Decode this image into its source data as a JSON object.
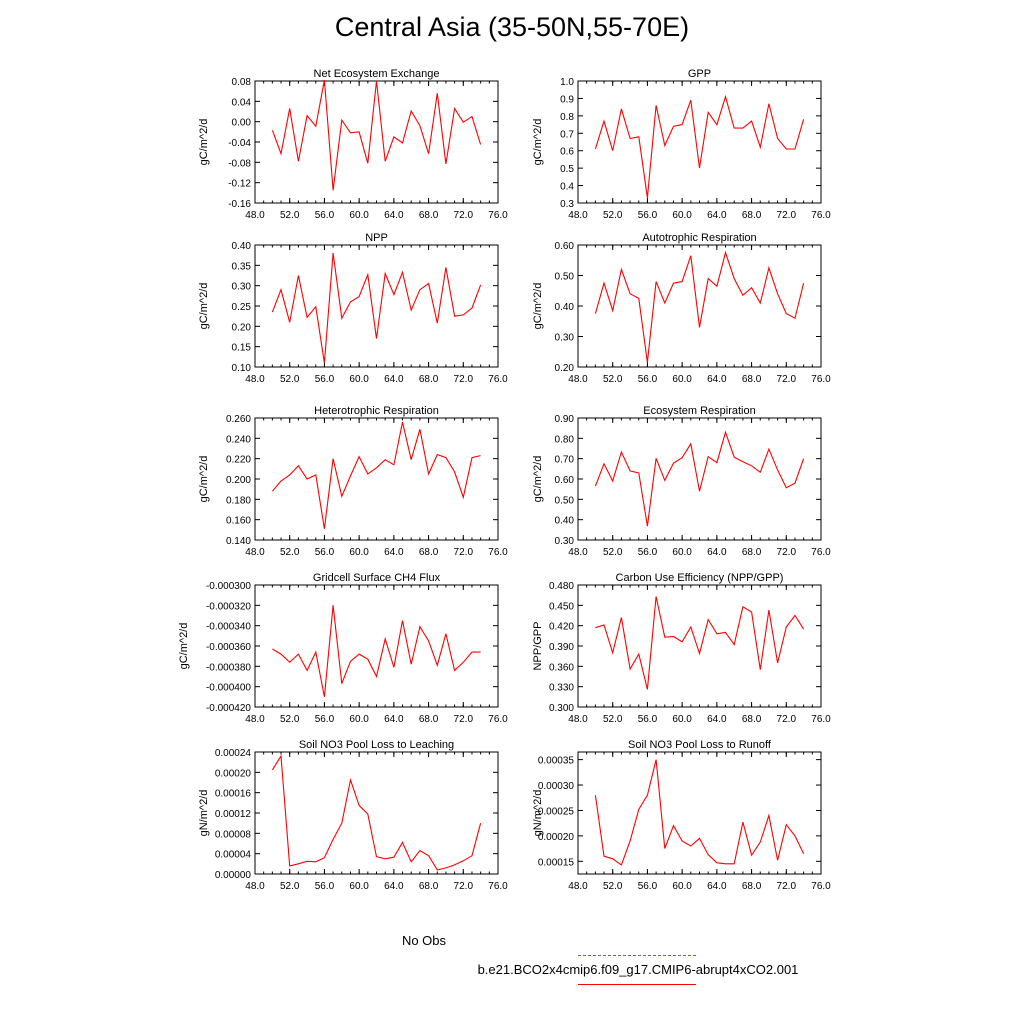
{
  "title": "Central Asia (35-50N,55-70E)",
  "legend": {
    "obs_label": "No Obs",
    "obs_color": "#5b5bd6",
    "model_label": "b.e21.BCO2x4cmip6.f09_g17.CMIP6-abrupt4xCO2.001",
    "model_color": "#ff0000"
  },
  "chart_data": [
    {
      "type": "line",
      "title": "Net Ecosystem Exchange",
      "ylabel": "gC/m^2/d",
      "xlim": [
        48,
        76
      ],
      "xticks": [
        "48.0",
        "52.0",
        "56.0",
        "60.0",
        "64.0",
        "68.0",
        "72.0",
        "76.0"
      ],
      "ylim": [
        -0.16,
        0.08
      ],
      "yticks": [
        "0.08",
        "0.04",
        "0.00",
        "-0.04",
        "-0.08",
        "-0.12",
        "-0.16"
      ],
      "x": [
        50,
        51,
        52,
        53,
        54,
        55,
        56,
        57,
        58,
        59,
        60,
        61,
        62,
        63,
        64,
        65,
        66,
        67,
        68,
        69,
        70,
        71,
        72,
        73,
        74
      ],
      "series": [
        {
          "values": [
            -0.017,
            -0.063,
            0.026,
            -0.078,
            0.012,
            -0.009,
            0.082,
            -0.135,
            0.003,
            -0.022,
            -0.02,
            -0.082,
            0.08,
            -0.078,
            -0.03,
            -0.042,
            0.021,
            -0.008,
            -0.063,
            0.056,
            -0.083,
            0.026,
            -0.001,
            0.01,
            -0.045
          ]
        }
      ]
    },
    {
      "type": "line",
      "title": "GPP",
      "ylabel": "gC/m^2/d",
      "xlim": [
        48,
        76
      ],
      "xticks": [
        "48.0",
        "52.0",
        "56.0",
        "60.0",
        "64.0",
        "68.0",
        "72.0",
        "76.0"
      ],
      "ylim": [
        0.3,
        1.0
      ],
      "yticks": [
        "1.0",
        "0.9",
        "0.8",
        "0.7",
        "0.6",
        "0.5",
        "0.4",
        "0.3"
      ],
      "x": [
        50,
        51,
        52,
        53,
        54,
        55,
        56,
        57,
        58,
        59,
        60,
        61,
        62,
        63,
        64,
        65,
        66,
        67,
        68,
        69,
        70,
        71,
        72,
        73,
        74
      ],
      "series": [
        {
          "values": [
            0.61,
            0.77,
            0.6,
            0.84,
            0.67,
            0.68,
            0.33,
            0.86,
            0.63,
            0.74,
            0.75,
            0.89,
            0.5,
            0.82,
            0.75,
            0.91,
            0.73,
            0.73,
            0.77,
            0.62,
            0.87,
            0.67,
            0.61,
            0.61,
            0.78
          ]
        }
      ]
    },
    {
      "type": "line",
      "title": "NPP",
      "ylabel": "gC/m^2/d",
      "xlim": [
        48,
        76
      ],
      "xticks": [
        "48.0",
        "52.0",
        "56.0",
        "60.0",
        "64.0",
        "68.0",
        "72.0",
        "76.0"
      ],
      "ylim": [
        0.1,
        0.4
      ],
      "yticks": [
        "0.40",
        "0.35",
        "0.30",
        "0.25",
        "0.20",
        "0.15",
        "0.10"
      ],
      "x": [
        50,
        51,
        52,
        53,
        54,
        55,
        56,
        57,
        58,
        59,
        60,
        61,
        62,
        63,
        64,
        65,
        66,
        67,
        68,
        69,
        70,
        71,
        72,
        73,
        74
      ],
      "series": [
        {
          "values": [
            0.235,
            0.29,
            0.21,
            0.325,
            0.222,
            0.248,
            0.11,
            0.38,
            0.22,
            0.26,
            0.273,
            0.327,
            0.17,
            0.33,
            0.278,
            0.333,
            0.24,
            0.29,
            0.305,
            0.208,
            0.345,
            0.225,
            0.228,
            0.245,
            0.302
          ]
        }
      ]
    },
    {
      "type": "line",
      "title": "Autotrophic Respiration",
      "ylabel": "gC/m^2/d",
      "xlim": [
        48,
        76
      ],
      "xticks": [
        "48.0",
        "52.0",
        "56.0",
        "60.0",
        "64.0",
        "68.0",
        "72.0",
        "76.0"
      ],
      "ylim": [
        0.2,
        0.6
      ],
      "yticks": [
        "0.60",
        "0.50",
        "0.40",
        "0.30",
        "0.20"
      ],
      "x": [
        50,
        51,
        52,
        53,
        54,
        55,
        56,
        57,
        58,
        59,
        60,
        61,
        62,
        63,
        64,
        65,
        66,
        67,
        68,
        69,
        70,
        71,
        72,
        73,
        74
      ],
      "series": [
        {
          "values": [
            0.375,
            0.475,
            0.385,
            0.52,
            0.44,
            0.425,
            0.215,
            0.48,
            0.41,
            0.475,
            0.48,
            0.565,
            0.33,
            0.49,
            0.465,
            0.575,
            0.49,
            0.435,
            0.46,
            0.41,
            0.525,
            0.44,
            0.375,
            0.36,
            0.475
          ]
        }
      ]
    },
    {
      "type": "line",
      "title": "Heterotrophic Respiration",
      "ylabel": "gC/m^2/d",
      "xlim": [
        48,
        76
      ],
      "xticks": [
        "48.0",
        "52.0",
        "56.0",
        "60.0",
        "64.0",
        "68.0",
        "72.0",
        "76.0"
      ],
      "ylim": [
        0.14,
        0.26
      ],
      "yticks": [
        "0.260",
        "0.240",
        "0.220",
        "0.200",
        "0.180",
        "0.160",
        "0.140"
      ],
      "x": [
        50,
        51,
        52,
        53,
        54,
        55,
        56,
        57,
        58,
        59,
        60,
        61,
        62,
        63,
        64,
        65,
        66,
        67,
        68,
        69,
        70,
        71,
        72,
        73,
        74
      ],
      "series": [
        {
          "values": [
            0.188,
            0.198,
            0.204,
            0.213,
            0.2,
            0.204,
            0.151,
            0.22,
            0.183,
            0.203,
            0.222,
            0.205,
            0.211,
            0.219,
            0.214,
            0.256,
            0.219,
            0.249,
            0.205,
            0.224,
            0.221,
            0.207,
            0.182,
            0.221,
            0.223
          ]
        }
      ]
    },
    {
      "type": "line",
      "title": "Ecosystem Respiration",
      "ylabel": "gC/m^2/d",
      "xlim": [
        48,
        76
      ],
      "xticks": [
        "48.0",
        "52.0",
        "56.0",
        "60.0",
        "64.0",
        "68.0",
        "72.0",
        "76.0"
      ],
      "ylim": [
        0.3,
        0.9
      ],
      "yticks": [
        "0.90",
        "0.80",
        "0.70",
        "0.60",
        "0.50",
        "0.40",
        "0.30"
      ],
      "x": [
        50,
        51,
        52,
        53,
        54,
        55,
        56,
        57,
        58,
        59,
        60,
        61,
        62,
        63,
        64,
        65,
        66,
        67,
        68,
        69,
        70,
        71,
        72,
        73,
        74
      ],
      "series": [
        {
          "values": [
            0.565,
            0.675,
            0.59,
            0.733,
            0.64,
            0.63,
            0.368,
            0.702,
            0.593,
            0.678,
            0.705,
            0.773,
            0.54,
            0.71,
            0.68,
            0.83,
            0.707,
            0.685,
            0.665,
            0.633,
            0.747,
            0.645,
            0.557,
            0.58,
            0.7
          ]
        }
      ]
    },
    {
      "type": "line",
      "title": "Gridcell Surface CH4 Flux",
      "ylabel": "gC/m^2/d",
      "xlim": [
        48,
        76
      ],
      "xticks": [
        "48.0",
        "52.0",
        "56.0",
        "60.0",
        "64.0",
        "68.0",
        "72.0",
        "76.0"
      ],
      "ylim": [
        -0.00042,
        -0.0003
      ],
      "yticks": [
        "-0.000300",
        "-0.000320",
        "-0.000340",
        "-0.000360",
        "-0.000380",
        "-0.000400",
        "-0.000420"
      ],
      "x": [
        50,
        51,
        52,
        53,
        54,
        55,
        56,
        57,
        58,
        59,
        60,
        61,
        62,
        63,
        64,
        65,
        66,
        67,
        68,
        69,
        70,
        71,
        72,
        73,
        74
      ],
      "series": [
        {
          "values": [
            -0.000363,
            -0.000368,
            -0.000376,
            -0.000368,
            -0.000384,
            -0.000366,
            -0.00041,
            -0.00032,
            -0.000397,
            -0.000375,
            -0.000368,
            -0.000373,
            -0.00039,
            -0.000353,
            -0.000381,
            -0.000335,
            -0.000378,
            -0.000341,
            -0.000355,
            -0.000379,
            -0.000348,
            -0.000384,
            -0.000376,
            -0.000366,
            -0.000366
          ]
        }
      ]
    },
    {
      "type": "line",
      "title": "Carbon Use Efficiency (NPP/GPP)",
      "ylabel": "NPP/GPP",
      "xlim": [
        48,
        76
      ],
      "xticks": [
        "48.0",
        "52.0",
        "56.0",
        "60.0",
        "64.0",
        "68.0",
        "72.0",
        "76.0"
      ],
      "ylim": [
        0.3,
        0.48
      ],
      "yticks": [
        "0.480",
        "0.450",
        "0.420",
        "0.390",
        "0.360",
        "0.330",
        "0.300"
      ],
      "x": [
        50,
        51,
        52,
        53,
        54,
        55,
        56,
        57,
        58,
        59,
        60,
        61,
        62,
        63,
        64,
        65,
        66,
        67,
        68,
        69,
        70,
        71,
        72,
        73,
        74
      ],
      "series": [
        {
          "values": [
            0.417,
            0.421,
            0.38,
            0.432,
            0.356,
            0.378,
            0.326,
            0.463,
            0.403,
            0.404,
            0.396,
            0.418,
            0.379,
            0.429,
            0.408,
            0.41,
            0.392,
            0.448,
            0.44,
            0.355,
            0.443,
            0.365,
            0.418,
            0.435,
            0.415
          ]
        }
      ]
    },
    {
      "type": "line",
      "title": "Soil NO3 Pool Loss to Leaching",
      "ylabel": "gN/m^2/d",
      "xlim": [
        48,
        76
      ],
      "xticks": [
        "48.0",
        "52.0",
        "56.0",
        "60.0",
        "64.0",
        "68.0",
        "72.0",
        "76.0"
      ],
      "ylim": [
        0,
        0.00024
      ],
      "yticks": [
        "0.00024",
        "0.00020",
        "0.00016",
        "0.00012",
        "0.00008",
        "0.00004",
        "0.00000"
      ],
      "x": [
        50,
        51,
        52,
        53,
        54,
        55,
        56,
        57,
        58,
        59,
        60,
        61,
        62,
        63,
        64,
        65,
        66,
        67,
        68,
        69,
        70,
        71,
        72,
        73,
        74
      ],
      "series": [
        {
          "values": [
            0.000205,
            0.000232,
            1.6e-05,
            2e-05,
            2.5e-05,
            2.4e-05,
            3.2e-05,
            6.8e-05,
            0.0001,
            0.000185,
            0.000135,
            0.000118,
            3.4e-05,
            3e-05,
            3.3e-05,
            6.2e-05,
            2.4e-05,
            4.6e-05,
            3.6e-05,
            8e-06,
            1.2e-05,
            1.8e-05,
            2.6e-05,
            3.6e-05,
            0.0001
          ]
        }
      ]
    },
    {
      "type": "line",
      "title": "Soil NO3 Pool Loss to Runoff",
      "ylabel": "gN/m^2/d",
      "xlim": [
        48,
        76
      ],
      "xticks": [
        "48.0",
        "52.0",
        "56.0",
        "60.0",
        "64.0",
        "68.0",
        "72.0",
        "76.0"
      ],
      "ylim": [
        0.000125,
        0.000365
      ],
      "yticks": [
        "0.00035",
        "0.00030",
        "0.00025",
        "0.00020",
        "0.00015"
      ],
      "x": [
        50,
        51,
        52,
        53,
        54,
        55,
        56,
        57,
        58,
        59,
        60,
        61,
        62,
        63,
        64,
        65,
        66,
        67,
        68,
        69,
        70,
        71,
        72,
        73,
        74
      ],
      "series": [
        {
          "values": [
            0.00028,
            0.00016,
            0.000155,
            0.000143,
            0.00019,
            0.000252,
            0.00028,
            0.00035,
            0.000175,
            0.00022,
            0.00019,
            0.00018,
            0.000195,
            0.000163,
            0.000147,
            0.000145,
            0.000145,
            0.000227,
            0.000162,
            0.000188,
            0.00024,
            0.000152,
            0.000222,
            0.0002,
            0.000165
          ]
        }
      ]
    }
  ]
}
